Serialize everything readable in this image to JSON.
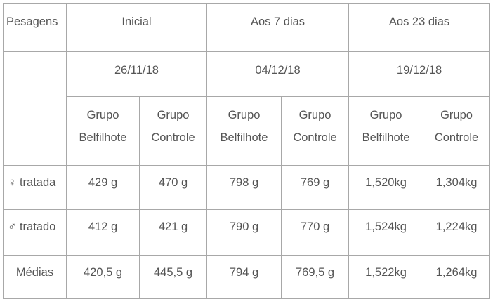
{
  "table": {
    "corner_label": "Pesagens",
    "periods": [
      {
        "title": "Inicial",
        "date": "26/11/18"
      },
      {
        "title": "Aos 7 dias",
        "date": "04/12/18"
      },
      {
        "title": "Aos 23 dias",
        "date": "19/12/18"
      }
    ],
    "groups": [
      {
        "line1": "Grupo",
        "line2": "Belfilhote"
      },
      {
        "line1": "Grupo",
        "line2": "Controle"
      },
      {
        "line1": "Grupo",
        "line2": "Belfilhote"
      },
      {
        "line1": "Grupo",
        "line2": "Controle"
      },
      {
        "line1": "Grupo",
        "line2": "Belfilhote"
      },
      {
        "line1": "Grupo",
        "line2": "Controle"
      }
    ],
    "rows": [
      {
        "label": "♀ tratada",
        "values": [
          "429 g",
          "470 g",
          "798 g",
          "769 g",
          "1,520kg",
          "1,304kg"
        ]
      },
      {
        "label": "♂ tratado",
        "values": [
          "412 g",
          "421 g",
          "790 g",
          "770 g",
          "1,524kg",
          "1,224kg"
        ]
      },
      {
        "label": "Médias",
        "values": [
          "420,5 g",
          "445,5 g",
          "794 g",
          "769,5 g",
          "1,522kg",
          "1,264kg"
        ]
      }
    ]
  }
}
